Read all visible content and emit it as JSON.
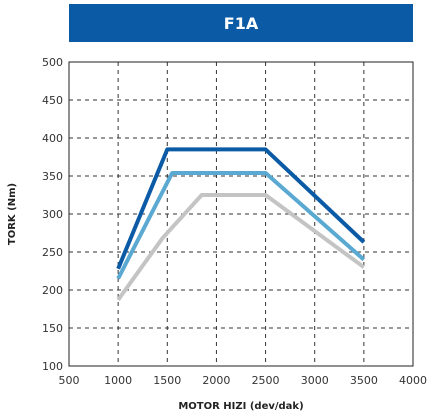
{
  "chart_data": {
    "type": "line",
    "title": "F1A",
    "xlabel": "MOTOR HIZI (dev/dak)",
    "ylabel": "TORK (Nm)",
    "xlim": [
      500,
      4000
    ],
    "ylim": [
      100,
      500
    ],
    "xticks": [
      500,
      1000,
      1500,
      2000,
      2500,
      3000,
      3500,
      4000
    ],
    "yticks": [
      100,
      150,
      200,
      250,
      300,
      350,
      400,
      450,
      500
    ],
    "grid": true,
    "grid_style": "dashed",
    "series": [
      {
        "color": "#0a5aa5",
        "x": [
          1000,
          1500,
          2500,
          3500
        ],
        "y": [
          228,
          385,
          385,
          263
        ]
      },
      {
        "color": "#5aa9d2",
        "x": [
          1000,
          1550,
          2500,
          3500
        ],
        "y": [
          215,
          354,
          354,
          240
        ]
      },
      {
        "color": "#c4c4c4",
        "x": [
          1000,
          1450,
          1850,
          2500,
          3500
        ],
        "y": [
          187,
          268,
          325,
          325,
          230
        ]
      }
    ]
  }
}
